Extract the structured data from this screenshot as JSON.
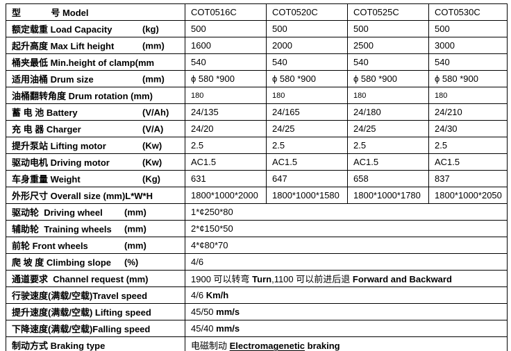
{
  "colors": {
    "grid": "#000000",
    "text": "#000000",
    "spellcheck_underline": "#ff0000"
  },
  "table": {
    "models": [
      "COT0516C",
      "COT0520C",
      "COT0525C",
      "COT0530C"
    ],
    "rows": [
      {
        "label": "型            号 Model",
        "unit": "",
        "values": [
          "COT0516C",
          "COT0520C",
          "COT0525C",
          "COT0530C"
        ]
      },
      {
        "label": "额定载重 Load Capacity",
        "unit": "(kg)",
        "values": [
          "500",
          "500",
          "500",
          "500"
        ]
      },
      {
        "label": "起升高度 Max Lift height",
        "unit": "(mm)",
        "values": [
          "1600",
          "2000",
          "2500",
          "3000"
        ]
      },
      {
        "label": "桶夹最低 Min.height of clamp(mm",
        "unit": "",
        "values": [
          "540",
          "540",
          "540",
          "540"
        ]
      },
      {
        "label": "适用油桶 Drum size",
        "unit": "(mm)",
        "values": [
          "ϕ 580 *900",
          "ϕ 580 *900",
          "ϕ 580 *900",
          "ϕ 580 *900"
        ]
      },
      {
        "label": "油桶翻转角度 Drum rotation (mm)",
        "unit": "",
        "values": [
          "180",
          "180",
          "180",
          "180"
        ]
      },
      {
        "label": "蓄 电 池 Battery",
        "unit": "(V/Ah)",
        "values": [
          "24/135",
          "24/165",
          "24/180",
          "24/210"
        ]
      },
      {
        "label": "充 电 器 Charger",
        "unit": "(V/A)",
        "values": [
          "24/20",
          "24/25",
          "24/25",
          "24/30"
        ]
      },
      {
        "label": "提升泵站 Lifting motor",
        "unit": "(Kw)",
        "values": [
          "2.5",
          "2.5",
          "2.5",
          "2.5"
        ]
      },
      {
        "label": "驱动电机 Driving motor",
        "unit": "(Kw)",
        "values": [
          "AC1.5",
          "AC1.5",
          "AC1.5",
          "AC1.5"
        ]
      },
      {
        "label": "车身重量 Weight",
        "unit": "(Kg)",
        "values": [
          "631",
          "647",
          "658",
          "837"
        ]
      },
      {
        "label": "外形尺寸 Overall size (mm)L*W*H",
        "unit": "",
        "values": [
          "1800*1000*2000",
          "1800*1000*1580",
          "1800*1000*1780",
          "1800*1000*2050"
        ]
      },
      {
        "label": "驱动轮  Driving wheel",
        "unit": "(mm)",
        "merged": [
          {
            "t": "1*¢250*80",
            "b": false
          }
        ]
      },
      {
        "label": "辅助轮  Training wheels",
        "unit": "(mm)",
        "merged": [
          {
            "t": "2*¢150*50",
            "b": false
          }
        ]
      },
      {
        "label": "前轮 Front wheels",
        "unit": "(mm)",
        "merged": [
          {
            "t": "4*¢80*70",
            "b": false
          }
        ]
      },
      {
        "label": "爬 坡 度 Climbing slope",
        "unit": "(%)",
        "merged": [
          {
            "t": "4/6",
            "b": false
          }
        ]
      },
      {
        "label": "通道要求  Channel request (mm)",
        "unit": "",
        "merged": [
          {
            "t": "1900 可以转弯 ",
            "b": false
          },
          {
            "t": "Turn",
            "b": true
          },
          {
            "t": ",1100 可以前进后退  ",
            "b": false
          },
          {
            "t": "Forward and Backward",
            "b": true
          }
        ]
      },
      {
        "label": "行驶速度(满载/空载)Travel speed",
        "unit": "",
        "merged": [
          {
            "t": "4/6 ",
            "b": false
          },
          {
            "t": "Km/h",
            "b": true
          }
        ]
      },
      {
        "label": "提升速度(满载/空载) Lifting speed",
        "unit": "",
        "merged": [
          {
            "t": "45/50 ",
            "b": false
          },
          {
            "t": "mm/s",
            "b": true
          }
        ]
      },
      {
        "label": "下降速度(满载/空载)Falling speed",
        "unit": "",
        "merged": [
          {
            "t": "45/40 ",
            "b": false
          },
          {
            "t": "mm/s",
            "b": true
          }
        ]
      },
      {
        "label": "制动方式 Braking type",
        "unit": "",
        "merged": [
          {
            "t": "电磁制动 ",
            "b": false
          },
          {
            "t": "Electromagenetic",
            "b": true,
            "spell": true
          },
          {
            "t": " ",
            "b": false
          },
          {
            "t": "braking",
            "b": true
          }
        ]
      }
    ]
  }
}
